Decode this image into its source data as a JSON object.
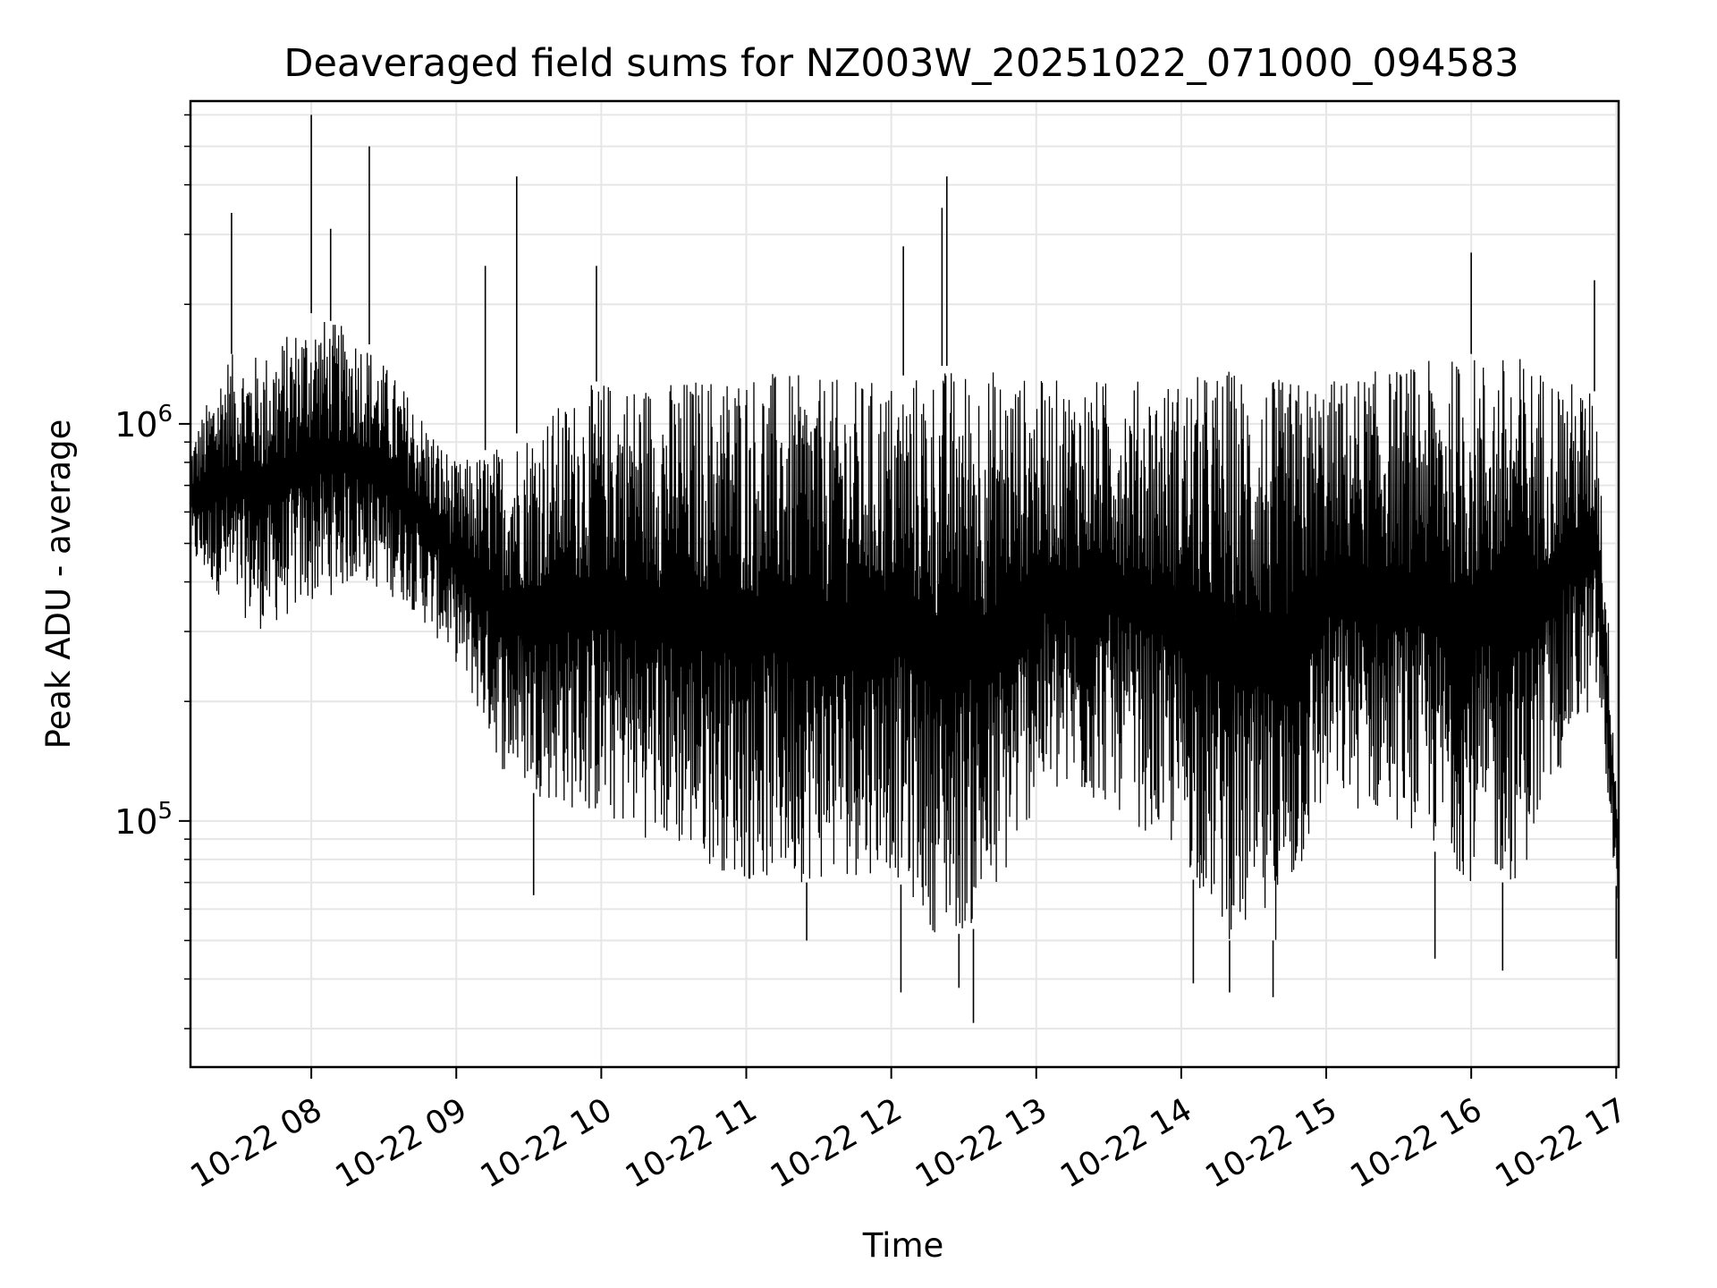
{
  "chart_data": {
    "type": "line",
    "title": "Deaveraged field sums for NZ003W_20251022_071000_094583",
    "xlabel": "Time",
    "ylabel": "Peak ADU - average",
    "yscale": "log",
    "grid": true,
    "legend": "none",
    "xlim": [
      "2025-10-22 07:10",
      "2025-10-22 17:01"
    ],
    "ylim": [
      24000,
      6500000
    ],
    "x_ticks": [
      {
        "value": "2025-10-22 08:00",
        "label": "10-22 08"
      },
      {
        "value": "2025-10-22 09:00",
        "label": "10-22 09"
      },
      {
        "value": "2025-10-22 10:00",
        "label": "10-22 10"
      },
      {
        "value": "2025-10-22 11:00",
        "label": "10-22 11"
      },
      {
        "value": "2025-10-22 12:00",
        "label": "10-22 12"
      },
      {
        "value": "2025-10-22 13:00",
        "label": "10-22 13"
      },
      {
        "value": "2025-10-22 14:00",
        "label": "10-22 14"
      },
      {
        "value": "2025-10-22 15:00",
        "label": "10-22 15"
      },
      {
        "value": "2025-10-22 16:00",
        "label": "10-22 16"
      },
      {
        "value": "2025-10-22 17:00",
        "label": "10-22 17"
      }
    ],
    "y_ticks": [
      {
        "value": 100000,
        "base": "10",
        "exp": "5"
      },
      {
        "value": 1000000,
        "base": "10",
        "exp": "6"
      }
    ],
    "series_color": "#000000",
    "envelope": {
      "x": [
        "2025-10-22 07:10",
        "2025-10-22 07:25",
        "2025-10-22 07:40",
        "2025-10-22 08:00",
        "2025-10-22 08:20",
        "2025-10-22 08:40",
        "2025-10-22 09:00",
        "2025-10-22 09:20",
        "2025-10-22 09:40",
        "2025-10-22 10:00",
        "2025-10-22 10:30",
        "2025-10-22 11:00",
        "2025-10-22 11:30",
        "2025-10-22 12:00",
        "2025-10-22 12:20",
        "2025-10-22 12:40",
        "2025-10-22 13:00",
        "2025-10-22 13:30",
        "2025-10-22 14:00",
        "2025-10-22 14:20",
        "2025-10-22 14:40",
        "2025-10-22 15:00",
        "2025-10-22 15:30",
        "2025-10-22 16:00",
        "2025-10-22 16:20",
        "2025-10-22 16:40",
        "2025-10-22 16:52",
        "2025-10-22 17:01"
      ],
      "upper": [
        900000,
        1500000,
        1500000,
        1900000,
        1700000,
        1200000,
        800000,
        900000,
        1100000,
        1300000,
        1300000,
        1400000,
        1300000,
        1300000,
        1400000,
        1400000,
        1300000,
        1300000,
        1300000,
        1400000,
        1300000,
        1300000,
        1400000,
        1500000,
        1500000,
        1300000,
        1200000,
        100000
      ],
      "lower": [
        450000,
        350000,
        300000,
        350000,
        400000,
        350000,
        250000,
        130000,
        110000,
        100000,
        85000,
        70000,
        70000,
        75000,
        50000,
        55000,
        110000,
        110000,
        80000,
        50000,
        50000,
        110000,
        100000,
        70000,
        70000,
        150000,
        200000,
        60000
      ]
    },
    "spikes": [
      {
        "x": "2025-10-22 08:00",
        "y": 6000000
      },
      {
        "x": "2025-10-22 08:24",
        "y": 5000000
      },
      {
        "x": "2025-10-22 09:25",
        "y": 4200000
      },
      {
        "x": "2025-10-22 07:27",
        "y": 3400000
      },
      {
        "x": "2025-10-22 08:08",
        "y": 3100000
      },
      {
        "x": "2025-10-22 12:21",
        "y": 3500000
      },
      {
        "x": "2025-10-22 12:23",
        "y": 4200000
      },
      {
        "x": "2025-10-22 12:05",
        "y": 2800000
      },
      {
        "x": "2025-10-22 16:00",
        "y": 2700000
      },
      {
        "x": "2025-10-22 09:58",
        "y": 2500000
      },
      {
        "x": "2025-10-22 09:12",
        "y": 2500000
      },
      {
        "x": "2025-10-22 16:51",
        "y": 2300000
      },
      {
        "x": "2025-10-22 12:34",
        "y": 31000
      },
      {
        "x": "2025-10-22 14:38",
        "y": 36000
      },
      {
        "x": "2025-10-22 14:20",
        "y": 37000
      },
      {
        "x": "2025-10-22 12:04",
        "y": 37000
      },
      {
        "x": "2025-10-22 12:28",
        "y": 38000
      },
      {
        "x": "2025-10-22 14:05",
        "y": 39000
      },
      {
        "x": "2025-10-22 15:45",
        "y": 45000
      },
      {
        "x": "2025-10-22 16:13",
        "y": 42000
      },
      {
        "x": "2025-10-22 11:25",
        "y": 50000
      },
      {
        "x": "2025-10-22 09:32",
        "y": 65000
      },
      {
        "x": "2025-10-22 17:00",
        "y": 45000
      }
    ]
  }
}
